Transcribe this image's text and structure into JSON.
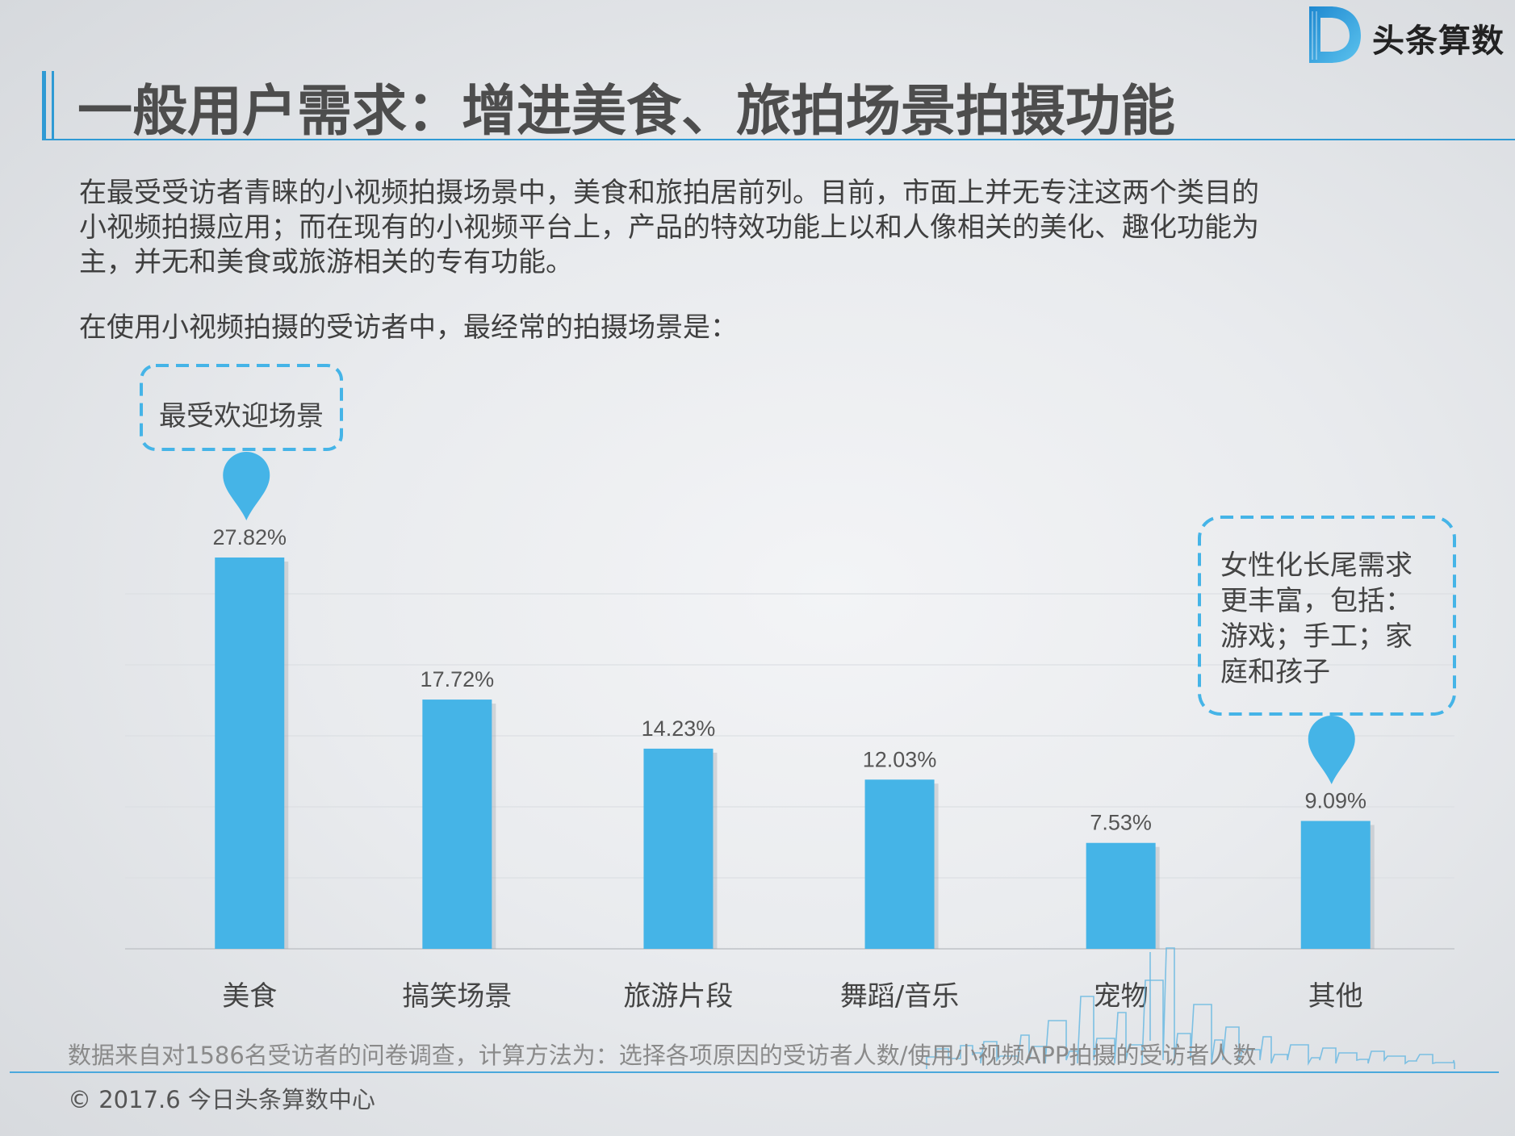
{
  "brand": {
    "name": "头条算数",
    "accent": "#2f9ad4"
  },
  "title": "一般用户需求：增进美食、旅拍场景拍摄功能",
  "intro_lines": [
    "在最受受访者青睐的小视频拍摄场景中，美食和旅拍居前列。目前，市面上并无专注这两个类目的",
    "小视频拍摄应用；而在现有的小视频平台上，产品的特效功能上以和人像相关的美化、趣化功能为",
    "主，并无和美食或旅游相关的专有功能。"
  ],
  "chart_lead": "在使用小视频拍摄的受访者中，最经常的拍摄场景是：",
  "chart_data": {
    "type": "bar",
    "categories": [
      "美食",
      "搞笑场景",
      "旅游片段",
      "舞蹈/音乐",
      "宠物",
      "其他"
    ],
    "values": [
      27.82,
      17.72,
      14.23,
      12.03,
      7.53,
      9.09
    ],
    "value_labels": [
      "27.82%",
      "17.72%",
      "14.23%",
      "12.03%",
      "7.53%",
      "9.09%"
    ],
    "unit": "%",
    "ylim": [
      0,
      30
    ],
    "grid": true,
    "bar_color": "#45b4e7",
    "annotations": [
      {
        "category": "美食",
        "lines": [
          "最受欢迎场景"
        ]
      },
      {
        "category": "其他",
        "lines": [
          "女性化长尾需求",
          "更丰富，包括：",
          "游戏；手工；家",
          "庭和孩子"
        ]
      }
    ]
  },
  "source_note": "数据来自对1586名受访者的问卷调查，计算方法为：选择各项原因的受访者人数/使用小视频APP拍摄的受访者人数",
  "copyright": "© 2017.6 今日头条算数中心"
}
